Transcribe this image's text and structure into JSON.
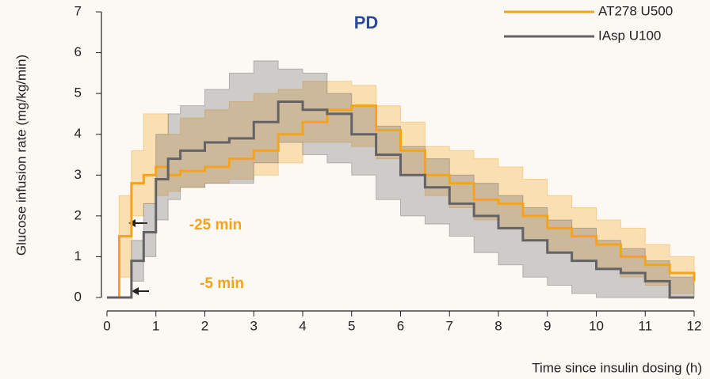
{
  "chart_data": {
    "type": "step-band",
    "title": "PD",
    "xlabel": "Time since insulin dosing (h)",
    "ylabel": "Glucose infusion rate (mg/kg/min)",
    "annotations": [
      "-25 min",
      "-5 min"
    ],
    "x": [
      0,
      0.25,
      0.5,
      0.75,
      1,
      1.25,
      1.5,
      2,
      2.5,
      3,
      3.5,
      4,
      4.5,
      5,
      5.5,
      6,
      6.5,
      7,
      7.5,
      8,
      8.5,
      9,
      9.5,
      10,
      10.5,
      11,
      11.5,
      12
    ],
    "series": [
      {
        "name": "AT278 U500",
        "color": "#f5a31a",
        "values": [
          0,
          1.5,
          2.8,
          3.0,
          3.2,
          3.0,
          3.1,
          3.2,
          3.4,
          3.6,
          4.0,
          4.3,
          4.6,
          4.7,
          4.1,
          3.6,
          3.0,
          2.8,
          2.4,
          2.3,
          2.0,
          1.7,
          1.5,
          1.3,
          1.0,
          0.8,
          0.6,
          0.4
        ],
        "lower": [
          0,
          0.5,
          2.0,
          2.3,
          2.5,
          2.6,
          2.7,
          2.8,
          2.9,
          3.0,
          3.3,
          3.8,
          3.8,
          3.7,
          3.4,
          3.0,
          2.5,
          2.2,
          1.9,
          1.7,
          1.4,
          1.1,
          0.9,
          0.7,
          0.5,
          0.3,
          0.1,
          0
        ],
        "upper": [
          0,
          2.5,
          3.6,
          4.5,
          4.5,
          4.0,
          4.4,
          4.6,
          4.8,
          5.0,
          5.1,
          5.3,
          5.3,
          5.2,
          4.7,
          4.3,
          3.7,
          3.6,
          3.4,
          3.2,
          2.9,
          2.5,
          2.2,
          1.9,
          1.7,
          1.3,
          1.0,
          0.8
        ]
      },
      {
        "name": "IAsp U100",
        "color": "#636366",
        "values": [
          0,
          0,
          0.9,
          1.6,
          2.9,
          3.4,
          3.6,
          3.8,
          3.9,
          4.3,
          4.8,
          4.6,
          4.5,
          4.0,
          3.5,
          3.0,
          2.7,
          2.3,
          2.0,
          1.7,
          1.4,
          1.1,
          0.9,
          0.7,
          0.6,
          0.4,
          0,
          0
        ],
        "lower": [
          0,
          0,
          0.4,
          1.0,
          1.9,
          2.4,
          2.7,
          2.8,
          2.8,
          3.3,
          3.8,
          3.5,
          3.3,
          3.0,
          2.4,
          2.0,
          1.8,
          1.5,
          1.1,
          0.8,
          0.5,
          0.3,
          0.1,
          0,
          0,
          0,
          0,
          0
        ],
        "upper": [
          0,
          0,
          1.4,
          2.3,
          4.0,
          4.5,
          4.7,
          5.1,
          5.5,
          5.8,
          5.6,
          5.5,
          5.0,
          4.7,
          4.2,
          3.7,
          3.4,
          3.0,
          2.8,
          2.5,
          2.2,
          1.9,
          1.7,
          1.4,
          1.2,
          0.9,
          0.5,
          0.2
        ]
      }
    ],
    "xlim": [
      0,
      12
    ],
    "xticks": [
      0,
      1,
      2,
      3,
      4,
      5,
      6,
      7,
      8,
      9,
      10,
      11,
      12
    ],
    "ylim": [
      0,
      7
    ],
    "yticks": [
      0,
      1,
      2,
      3,
      4,
      5,
      6,
      7
    ]
  }
}
